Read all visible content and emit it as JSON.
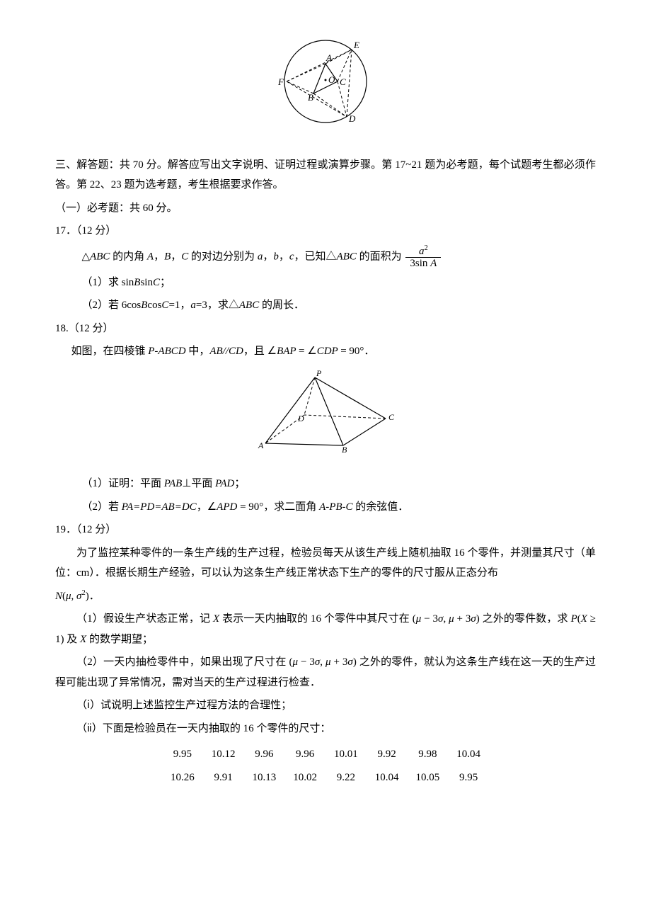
{
  "figure1": {
    "labels": {
      "A": "A",
      "B": "B",
      "C": "C",
      "D": "D",
      "E": "E",
      "F": "F",
      "O": "O"
    },
    "stroke": "#000000",
    "radius": 60,
    "dash": "4 3"
  },
  "section3": {
    "heading": "三、解答题：共 70 分。解答应写出文字说明、证明过程或演算步骤。第 17~21 题为必考题，每个试题考生都必须作答。第 22、23 题为选考题，考生根据要求作答。",
    "required_heading": "（一）必考题：共 60 分。"
  },
  "q17": {
    "header": "17．（12 分）",
    "stem_p1": "△",
    "stem_p2": " 的内角 ",
    "stem_p3": "，",
    "stem_p4": "，",
    "stem_p5": " 的对边分别为 ",
    "stem_p6": "，",
    "stem_p7": "，",
    "stem_p8": "，已知△",
    "stem_p9": " 的面积为 ",
    "frac_num": "a",
    "frac_den_prefix": "3sin ",
    "frac_den_var": "A",
    "sub1": "（1）求 sin",
    "sub1_b": "sin",
    "sub1_c": "；",
    "sub2_a": "（2）若 6cos",
    "sub2_b": "cos",
    "sub2_c": "=1，",
    "sub2_d": "=3，求△",
    "sub2_e": " 的周长．",
    "ABC": "ABC",
    "A": "A",
    "B": "B",
    "C": "C",
    "a": "a",
    "b": "b",
    "c": "c"
  },
  "q18": {
    "header": "18.（12 分）",
    "stem_a": "如图，在四棱锥 ",
    "stem_b": " 中，",
    "stem_c": "，且 ",
    "stem_d": "．",
    "P_ABCD": "P-ABCD",
    "parallel": "AB//CD",
    "angle_eq": "∠BAP = ∠CDP = 90°",
    "labels": {
      "P": "P",
      "A": "A",
      "B": "B",
      "C": "C",
      "D": "D"
    },
    "sub1_a": "（1）证明：平面 ",
    "sub1_b": "⊥平面 ",
    "sub1_c": "；",
    "PAB": "PAB",
    "PAD": "PAD",
    "sub2_a": "（2）若 ",
    "sub2_b": "，",
    "sub2_c": "，求二面角 ",
    "sub2_d": " 的余弦值．",
    "eq_sides": "PA=PD=AB=DC",
    "apd90": "∠APD = 90°",
    "APBC": "A-PB-C"
  },
  "q19": {
    "header": "19．（12 分）",
    "para1": "为了监控某种零件的一条生产线的生产过程，检验员每天从该生产线上随机抽取 16 个零件，并测量其尺寸（单位：cm）．根据长期生产经验，可以认为这条生产线正常状态下生产的零件的尺寸服从正态分布",
    "normal": "N(μ, σ²)",
    "period": "．",
    "sub1_a": "（1）假设生产状态正常，记 ",
    "X": "X",
    "sub1_b": " 表示一天内抽取的 16 个零件中其尺寸在 ",
    "interval": "(μ − 3σ, μ + 3σ)",
    "sub1_c": " 之外的零件数，",
    "sub1_d": "求 ",
    "prob": "P(X ≥ 1)",
    "sub1_e": " 及 ",
    "sub1_f": " 的数学期望；",
    "sub2_a": "（2）一天内抽检零件中，如果出现了尺寸在 ",
    "sub2_b": " 之外的零件，就认为这条生产线在这一天的生产过程可能出现了异常情况，需对当天的生产过程进行检查．",
    "sub2_i": "（ⅰ）试说明上述监控生产过程方法的合理性；",
    "sub2_ii": "（ⅱ）下面是检验员在一天内抽取的 16 个零件的尺寸：",
    "data_rows": [
      [
        "9.95",
        "10.12",
        "9.96",
        "9.96",
        "10.01",
        "9.92",
        "9.98",
        "10.04"
      ],
      [
        "10.26",
        "9.91",
        "10.13",
        "10.02",
        "9.22",
        "10.04",
        "10.05",
        "9.95"
      ]
    ]
  },
  "table_style": {
    "cols": 8,
    "font_size": 15,
    "cell_padding_h": 12
  }
}
